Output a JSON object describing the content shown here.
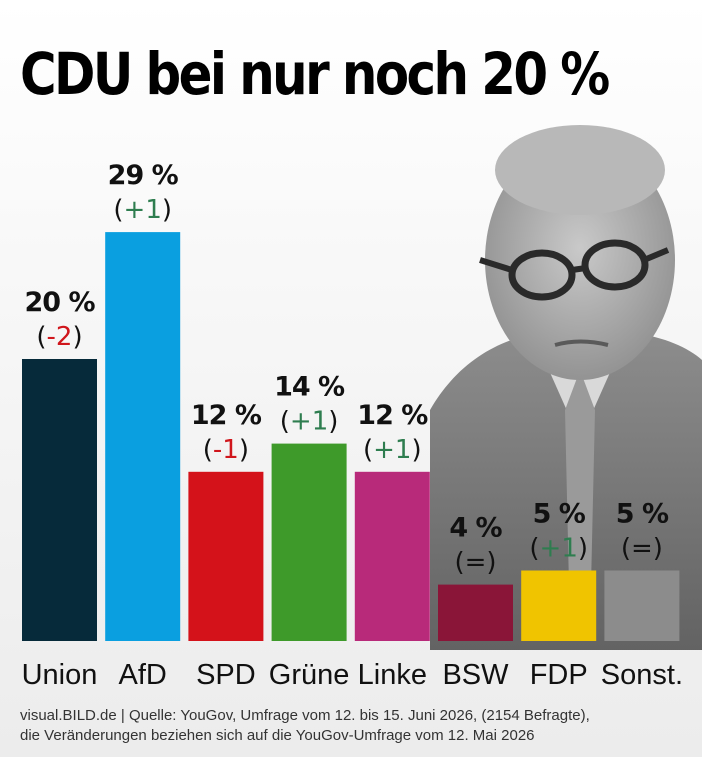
{
  "title": "CDU bei nur noch 20 %",
  "source_line1": "visual.BILD.de | Quelle: YouGov, Umfrage vom 12. bis 15. Juni 2026, (2154 Befragte),",
  "source_line2": "die Veränderungen beziehen sich auf die YouGov-Umfrage vom 12. Mai 2026",
  "chart_data": {
    "type": "bar",
    "title": "CDU bei nur noch 20 %",
    "xlabel": "",
    "ylabel": "",
    "ylim": [
      0,
      29
    ],
    "grid": false,
    "legend": "none",
    "unit": "%",
    "categories": [
      "Union",
      "AfD",
      "SPD",
      "Grüne",
      "Linke",
      "BSW",
      "FDP",
      "Sonst."
    ],
    "values": [
      20,
      29,
      12,
      14,
      12,
      4,
      5,
      5
    ],
    "value_labels": [
      "20 %",
      "29 %",
      "12 %",
      "14 %",
      "12 %",
      "4 %",
      "5 %",
      "5 %"
    ],
    "changes": [
      "(-2)",
      "(+1)",
      "(-1)",
      "(+1)",
      "(+1)",
      "",
      "(+1)",
      "(=)"
    ],
    "bsw_change": "(=)",
    "change_colors": {
      "up": "#2e7d4f",
      "down": "#d0161c",
      "same": "#111111"
    },
    "colors": [
      "#062a3a",
      "#0a9fe0",
      "#d4121a",
      "#3e9a2a",
      "#b82a7a",
      "#8a1538",
      "#f0c400",
      "#8c8c8c"
    ]
  }
}
